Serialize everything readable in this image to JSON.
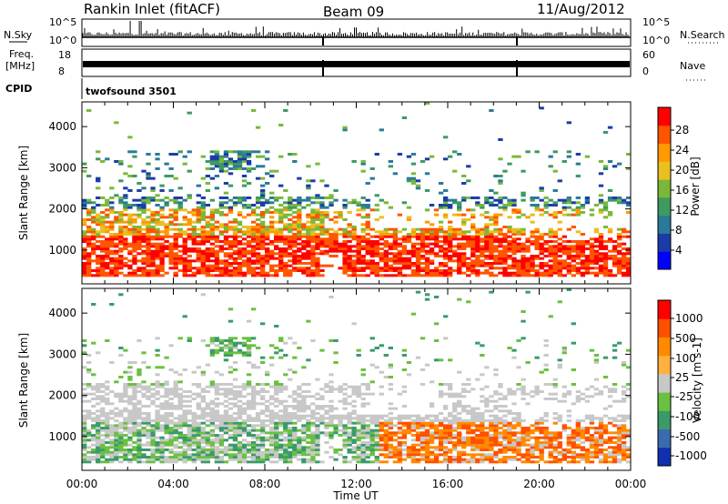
{
  "header": {
    "station": "Rankin Inlet (fitACF)",
    "beam": "Beam 09",
    "date": "11/Aug/2012"
  },
  "top_panels": {
    "nsky_label": "N.Sky",
    "nsky_ticks": [
      "10^5",
      "10^0"
    ],
    "nsearch_label": "N.Search",
    "nsearch_ticks": [
      "10^5",
      "10^0"
    ],
    "freq_label_1": "Freq.",
    "freq_label_2": "[MHz]",
    "freq_ticks": [
      "18",
      "8"
    ],
    "nave_label": "Nave",
    "nave_ticks": [
      "60",
      "0"
    ],
    "cpid_label": "CPID",
    "cpid_value": "twofsound 3501"
  },
  "chart_data": [
    {
      "type": "heatmap",
      "name": "power",
      "ylabel": "Slant Range [km]",
      "xlabel": "Time UT",
      "xlim": [
        "00:00",
        "24:00"
      ],
      "ylim": [
        180,
        4600
      ],
      "x_ticks": [
        "00:00",
        "04:00",
        "08:00",
        "12:00",
        "16:00",
        "20:00",
        "00:00"
      ],
      "y_ticks": [
        1000,
        2000,
        3000,
        4000
      ],
      "colorbar": {
        "label": "Power [dB]",
        "ticks": [
          "28",
          "24",
          "20",
          "16",
          "12",
          "8",
          "4"
        ],
        "colors": [
          "#0000ff",
          "#1a3ca8",
          "#2a7a9a",
          "#3d9a60",
          "#7ab83a",
          "#e8c020",
          "#ff9a00",
          "#ff5500",
          "#ff0000"
        ]
      }
    },
    {
      "type": "heatmap",
      "name": "velocity",
      "ylabel": "Slant Range [km]",
      "xlabel": "Time UT",
      "xlim": [
        "00:00",
        "24:00"
      ],
      "ylim": [
        180,
        4600
      ],
      "x_ticks": [
        "00:00",
        "04:00",
        "08:00",
        "12:00",
        "16:00",
        "20:00",
        "00:00"
      ],
      "y_ticks": [
        1000,
        2000,
        3000,
        4000
      ],
      "colorbar": {
        "label": "Velocity [m s-1]",
        "ticks": [
          "1000",
          "500",
          "100",
          "25",
          "-25",
          "-100",
          "-500",
          "-1000"
        ],
        "colors": [
          "#1030b0",
          "#3a6ab0",
          "#3a9a6a",
          "#6ac040",
          "#c8c8c8",
          "#ffb040",
          "#ff8a00",
          "#ff5000",
          "#ff0000"
        ]
      }
    }
  ],
  "x_axis_title": "Time UT"
}
